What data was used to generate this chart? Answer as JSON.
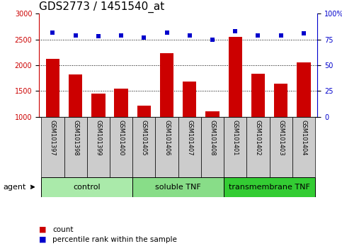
{
  "title": "GDS2773 / 1451540_at",
  "samples": [
    "GSM101397",
    "GSM101398",
    "GSM101399",
    "GSM101400",
    "GSM101405",
    "GSM101406",
    "GSM101407",
    "GSM101408",
    "GSM101401",
    "GSM101402",
    "GSM101403",
    "GSM101404"
  ],
  "counts": [
    2130,
    1820,
    1450,
    1550,
    1220,
    2230,
    1690,
    1100,
    2550,
    1840,
    1640,
    2060
  ],
  "percentile_pct": [
    82,
    79,
    78,
    79,
    77,
    82,
    79,
    75,
    83,
    79,
    79,
    81
  ],
  "ylim_left": [
    1000,
    3000
  ],
  "ylim_right": [
    0,
    100
  ],
  "yticks_left": [
    1000,
    1500,
    2000,
    2500,
    3000
  ],
  "yticks_right": [
    0,
    25,
    50,
    75,
    100
  ],
  "bar_color": "#cc0000",
  "dot_color": "#0000cc",
  "groups": [
    {
      "label": "control",
      "start": 0,
      "end": 4
    },
    {
      "label": "soluble TNF",
      "start": 4,
      "end": 8
    },
    {
      "label": "transmembrane TNF",
      "start": 8,
      "end": 12
    }
  ],
  "group_colors": [
    "#b8f0b8",
    "#b8f0b8",
    "#44cc44"
  ],
  "sample_bg_color": "#cccccc",
  "bar_color_red": "#cc0000",
  "dot_color_blue": "#0000cc",
  "legend_count": "count",
  "legend_pct": "percentile rank within the sample",
  "agent_label": "agent",
  "title_fontsize": 11,
  "tick_fontsize": 7,
  "sample_fontsize": 6,
  "group_fontsize": 8,
  "legend_fontsize": 7.5
}
